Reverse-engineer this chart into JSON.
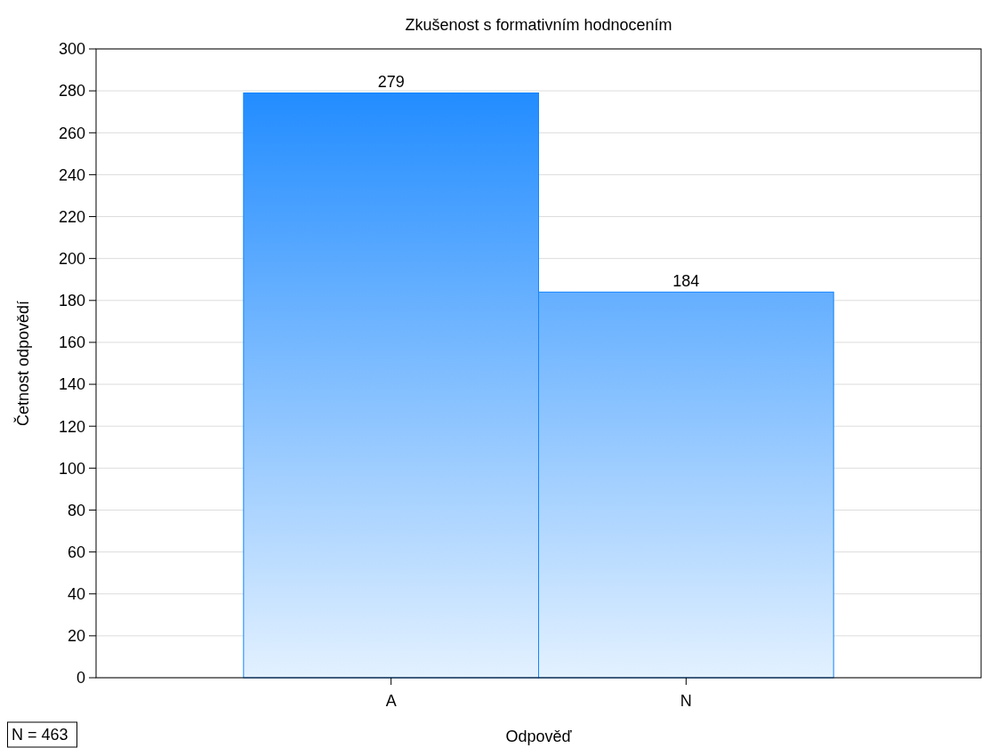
{
  "chart_data": {
    "type": "bar",
    "title": "Zkušenost s formativním hodnocením",
    "xlabel": "Odpověď",
    "ylabel": "Četnost odpovědí",
    "categories": [
      "A",
      "N"
    ],
    "values": [
      279,
      184
    ],
    "color": "#1485ff",
    "ylim": [
      0,
      300
    ],
    "yticks": [
      0,
      20,
      40,
      60,
      80,
      100,
      120,
      140,
      160,
      180,
      200,
      220,
      240,
      260,
      280,
      300
    ],
    "grid": "y",
    "data_labels": true,
    "annotations": [
      "N = 463"
    ]
  }
}
